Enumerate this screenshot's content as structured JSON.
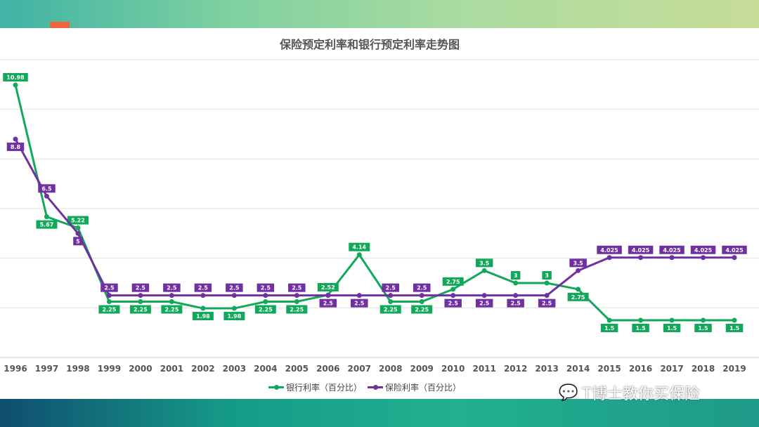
{
  "chart_data": {
    "type": "line",
    "title": "保险预定利率和银行预定利率走势图",
    "categories": [
      "1996",
      "1997",
      "1998",
      "1999",
      "2000",
      "2001",
      "2002",
      "2003",
      "2004",
      "2005",
      "2006",
      "2007",
      "2008",
      "2009",
      "2010",
      "2011",
      "2012",
      "2013",
      "2014",
      "2015",
      "2016",
      "2017",
      "2018",
      "2019"
    ],
    "series": [
      {
        "name": "银行利率（百分比）",
        "color": "#12a85a",
        "values": [
          10.98,
          5.67,
          5.22,
          2.25,
          2.25,
          2.25,
          1.98,
          1.98,
          2.25,
          2.25,
          2.52,
          4.14,
          2.25,
          2.25,
          2.75,
          3.5,
          3,
          3,
          2.75,
          1.5,
          1.5,
          1.5,
          1.5,
          1.5
        ]
      },
      {
        "name": "保险利率（百分比）",
        "color": "#7030a0",
        "values": [
          8.8,
          6.5,
          5,
          2.5,
          2.5,
          2.5,
          2.5,
          2.5,
          2.5,
          2.5,
          2.5,
          2.5,
          2.5,
          2.5,
          2.5,
          2.5,
          2.5,
          2.5,
          3.5,
          4.025,
          4.025,
          4.025,
          4.025,
          4.025
        ]
      }
    ],
    "ylim": [
      0,
      12
    ],
    "grid": true,
    "legend": "bottom"
  },
  "watermark": "T博士教你买保险"
}
